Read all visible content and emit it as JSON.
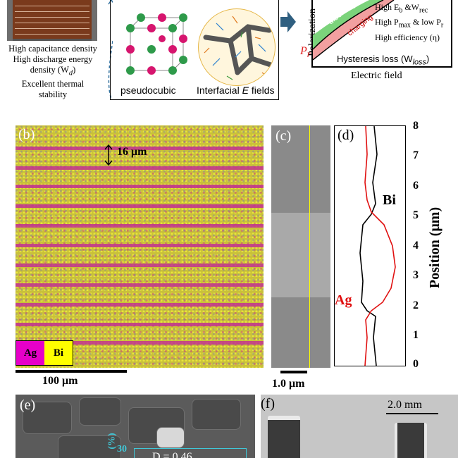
{
  "top": {
    "properties": [
      "High capacitance density",
      "High discharge energy",
      "density (W",
      "d",
      ")",
      "Excellent thermal",
      "stability"
    ],
    "lattice_label": "pseudocubic",
    "interface_label_a": "Interfacial ",
    "interface_label_e": "E",
    "interface_label_b": " fields",
    "right": {
      "pol_label": "Polarization",
      "discharge": "discharging",
      "charging": "charging",
      "pr": "P",
      "pr_sub": "r",
      "hysteresis": "Hysteresis loss (W",
      "hysteresis_sub": "loss",
      "hysteresis_end": ")",
      "efield": "Electric field",
      "line1": "High E",
      "line1_sub": "b",
      "line1_b": " &W",
      "line1_sub2": "rec",
      "line2": "High P",
      "line2_sub": "max",
      "line2_b": " & low P",
      "line2_sub2": "r",
      "line3": "High efficiency (η)"
    }
  },
  "b": {
    "tag": "(b)",
    "measure": "16 μm",
    "legend_ag": "Ag",
    "legend_bi": "Bi",
    "scale": "100  μm",
    "colors": {
      "ag": "#e600c8",
      "bi": "#ffff00"
    }
  },
  "c": {
    "tag": "(c)",
    "scale": "1.0 μm"
  },
  "d": {
    "tag": "(d)",
    "bi_label": "Bi",
    "ag_label": "Ag",
    "axis_label": "Position (μm)",
    "ticks": [
      "8",
      "7",
      "6",
      "5",
      "4",
      "3",
      "2",
      "1",
      "0"
    ]
  },
  "e": {
    "tag": "(e)",
    "inset_tick": "30",
    "inset_text": "D = 0.46",
    "inset_axis": "(%)"
  },
  "f": {
    "tag": "(f)",
    "scale": "2.0 mm"
  }
}
